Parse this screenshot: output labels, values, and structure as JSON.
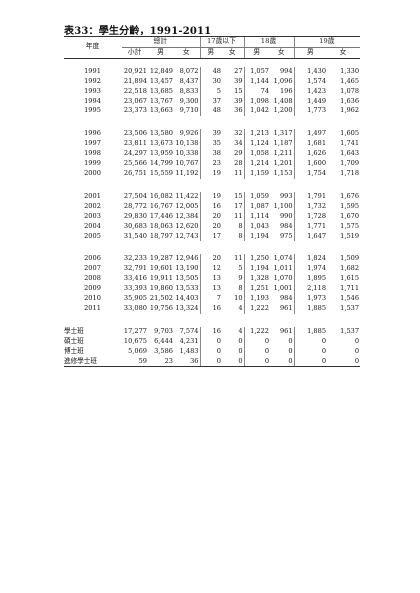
{
  "title": "表33：學生分齡，1991-2011",
  "header": {
    "year_label": "年度",
    "groups": [
      "總計",
      "17歲以下",
      "18歲",
      "19歲"
    ],
    "sub": [
      "小計",
      "男",
      "女",
      "男",
      "女",
      "男",
      "女",
      "男",
      "女"
    ]
  },
  "blocks": [
    [
      {
        "label": "1991",
        "v": [
          "20,921",
          "12,849",
          "8,072",
          "48",
          "27",
          "1,057",
          "994",
          "1,430",
          "1,330"
        ]
      },
      {
        "label": "1992",
        "v": [
          "21,894",
          "13,457",
          "8,437",
          "30",
          "39",
          "1,144",
          "1,096",
          "1,574",
          "1,465"
        ]
      },
      {
        "label": "1993",
        "v": [
          "22,518",
          "13,685",
          "8,833",
          "5",
          "15",
          "74",
          "196",
          "1,423",
          "1,078"
        ]
      },
      {
        "label": "1994",
        "v": [
          "23,067",
          "13,767",
          "9,300",
          "37",
          "39",
          "1,098",
          "1,408",
          "1,449",
          "1,636"
        ]
      },
      {
        "label": "1995",
        "v": [
          "23,373",
          "13,663",
          "9,710",
          "48",
          "36",
          "1,042",
          "1,200",
          "1,773",
          "1,962"
        ]
      }
    ],
    [
      {
        "label": "1996",
        "v": [
          "23,506",
          "13,580",
          "9,926",
          "39",
          "32",
          "1,213",
          "1,317",
          "1,497",
          "1,605"
        ]
      },
      {
        "label": "1997",
        "v": [
          "23,811",
          "13,673",
          "10,138",
          "35",
          "34",
          "1,124",
          "1,187",
          "1,681",
          "1,741"
        ]
      },
      {
        "label": "1998",
        "v": [
          "24,297",
          "13,959",
          "10,338",
          "38",
          "29",
          "1,058",
          "1,211",
          "1,626",
          "1,643"
        ]
      },
      {
        "label": "1999",
        "v": [
          "25,566",
          "14,799",
          "10,767",
          "23",
          "28",
          "1,214",
          "1,201",
          "1,600",
          "1,709"
        ]
      },
      {
        "label": "2000",
        "v": [
          "26,751",
          "15,559",
          "11,192",
          "19",
          "11",
          "1,159",
          "1,153",
          "1,754",
          "1,718"
        ]
      }
    ],
    [
      {
        "label": "2001",
        "v": [
          "27,504",
          "16,082",
          "11,422",
          "19",
          "15",
          "1,059",
          "993",
          "1,791",
          "1,676"
        ]
      },
      {
        "label": "2002",
        "v": [
          "28,772",
          "16,767",
          "12,005",
          "16",
          "17",
          "1,087",
          "1,100",
          "1,732",
          "1,595"
        ]
      },
      {
        "label": "2003",
        "v": [
          "29,830",
          "17,446",
          "12,384",
          "20",
          "11",
          "1,114",
          "990",
          "1,728",
          "1,670"
        ]
      },
      {
        "label": "2004",
        "v": [
          "30,683",
          "18,063",
          "12,620",
          "20",
          "8",
          "1,043",
          "984",
          "1,771",
          "1,575"
        ]
      },
      {
        "label": "2005",
        "v": [
          "31,540",
          "18,797",
          "12,743",
          "17",
          "8",
          "1,194",
          "975",
          "1,647",
          "1,519"
        ]
      }
    ],
    [
      {
        "label": "2006",
        "v": [
          "32,233",
          "19,287",
          "12,946",
          "20",
          "11",
          "1,250",
          "1,074",
          "1,824",
          "1,509"
        ]
      },
      {
        "label": "2007",
        "v": [
          "32,791",
          "19,601",
          "13,190",
          "12",
          "5",
          "1,194",
          "1,011",
          "1,974",
          "1,682"
        ]
      },
      {
        "label": "2008",
        "v": [
          "33,416",
          "19,911",
          "13,505",
          "13",
          "9",
          "1,328",
          "1,070",
          "1,895",
          "1,615"
        ]
      },
      {
        "label": "2009",
        "v": [
          "33,393",
          "19,860",
          "13,533",
          "13",
          "8",
          "1,251",
          "1,001",
          "2,118",
          "1,711"
        ]
      },
      {
        "label": "2010",
        "v": [
          "35,905",
          "21,502",
          "14,403",
          "7",
          "10",
          "1,193",
          "984",
          "1,973",
          "1,546"
        ]
      },
      {
        "label": "2011",
        "v": [
          "33,080",
          "19,756",
          "13,324",
          "16",
          "4",
          "1,222",
          "961",
          "1,885",
          "1,537"
        ]
      }
    ]
  ],
  "programs": [
    {
      "label": "學士班",
      "v": [
        "17,277",
        "9,703",
        "7,574",
        "16",
        "4",
        "1,222",
        "961",
        "1,885",
        "1,537"
      ]
    },
    {
      "label": "碩士班",
      "v": [
        "10,675",
        "6,444",
        "4,231",
        "0",
        "0",
        "0",
        "0",
        "0",
        "0"
      ]
    },
    {
      "label": "博士班",
      "v": [
        "5,069",
        "3,586",
        "1,483",
        "0",
        "0",
        "0",
        "0",
        "0",
        "0"
      ]
    },
    {
      "label": "進修學士班",
      "v": [
        "59",
        "23",
        "36",
        "0",
        "0",
        "0",
        "0",
        "0",
        "0"
      ]
    }
  ]
}
